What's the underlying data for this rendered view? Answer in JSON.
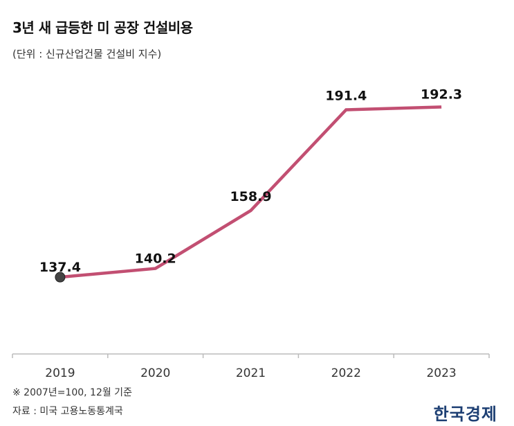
{
  "header": {
    "title": "3년 새 급등한 미 공장 건설비용",
    "subtitle": "(단위 : 신규산업건물 건설비 지수)"
  },
  "footer": {
    "note": "※ 2007년=100, 12월 기준",
    "source": "자료 : 미국 고용노동통계국",
    "logo": "한국경제"
  },
  "chart_data": {
    "type": "line",
    "categories": [
      "2019",
      "2020",
      "2021",
      "2022",
      "2023"
    ],
    "values": [
      137.4,
      140.2,
      158.9,
      191.4,
      192.3
    ],
    "value_labels": [
      "137.4",
      "140.2",
      "158.9",
      "191.4",
      "192.3"
    ],
    "title": "3년 새 급등한 미 공장 건설비용",
    "subtitle": "(단위 : 신규산업건물 건설비 지수)",
    "xlabel": "",
    "ylabel": "",
    "ylim": [
      120,
      200
    ],
    "grid": false,
    "legend": "none",
    "line_color": "#c24f72",
    "start_marker_color": "#444444"
  }
}
